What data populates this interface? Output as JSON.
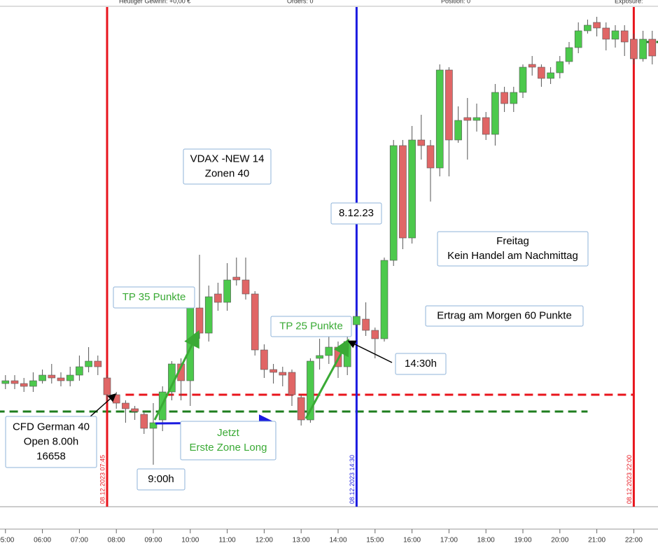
{
  "chart_data": {
    "type": "candlestick",
    "header": [
      "Heutiger Gewinn: +0,00 €",
      "Orders: 0",
      "Position: 0",
      "Exposure:"
    ],
    "x": [
      "05:00",
      "05:15",
      "05:30",
      "05:45",
      "06:00",
      "06:15",
      "06:30",
      "06:45",
      "07:00",
      "07:15",
      "07:30",
      "07:45",
      "08:00",
      "08:15",
      "08:30",
      "08:45",
      "09:00",
      "09:15",
      "09:30",
      "09:45",
      "10:00",
      "10:15",
      "10:30",
      "10:45",
      "11:00",
      "11:15",
      "11:30",
      "11:45",
      "12:00",
      "12:15",
      "12:30",
      "12:45",
      "13:00",
      "13:15",
      "13:30",
      "13:45",
      "14:00",
      "14:15",
      "14:30",
      "14:45",
      "15:00",
      "15:15",
      "15:30",
      "15:45",
      "16:00",
      "16:15",
      "16:30",
      "16:45",
      "17:00",
      "17:15",
      "17:30",
      "17:45",
      "18:00",
      "18:15",
      "18:30",
      "18:45",
      "19:00",
      "19:15",
      "19:30",
      "19:45",
      "20:00",
      "20:15",
      "20:30",
      "20:45",
      "21:00",
      "21:15",
      "21:30",
      "21:45",
      "22:00",
      "22:15",
      "22:30"
    ],
    "open": [
      16668,
      16669,
      16668,
      16667,
      16669,
      16671,
      16670,
      16669,
      16671,
      16674,
      16676,
      16670,
      16664,
      16661,
      16659,
      16657,
      16652,
      16655,
      16665,
      16675,
      16669,
      16695,
      16686,
      16700,
      16697,
      16706,
      16705,
      16700,
      16680,
      16673,
      16672,
      16672,
      16663,
      16655,
      16677,
      16678,
      16681,
      16674,
      16689,
      16691,
      16687,
      16684,
      16712,
      16753,
      16720,
      16755,
      16753,
      16745,
      16780,
      16755,
      16763,
      16762,
      16763,
      16757,
      16772,
      16768,
      16772,
      16782,
      16781,
      16777,
      16779,
      16783,
      16788,
      16794,
      16797,
      16795,
      16791,
      16794,
      16791,
      16784,
      16791
    ],
    "high": [
      16671,
      16671,
      16670,
      16672,
      16673,
      16675,
      16672,
      16674,
      16678,
      16681,
      16678,
      16671,
      16665,
      16662,
      16660,
      16658,
      16661,
      16667,
      16676,
      16677,
      16697,
      16714,
      16703,
      16704,
      16711,
      16713,
      16713,
      16701,
      16682,
      16675,
      16674,
      16673,
      16664,
      16677,
      16684,
      16687,
      16683,
      16685,
      16694,
      16697,
      16688,
      16713,
      16755,
      16755,
      16760,
      16764,
      16755,
      16782,
      16781,
      16767,
      16770,
      16768,
      16765,
      16775,
      16774,
      16774,
      16782,
      16785,
      16782,
      16781,
      16785,
      16790,
      16797,
      16798,
      16799,
      16797,
      16796,
      16796,
      16793,
      16794,
      16794
    ],
    "low": [
      16666,
      16666,
      16665,
      16665,
      16668,
      16668,
      16667,
      16667,
      16669,
      16672,
      16671,
      16662,
      16659,
      16654,
      16655,
      16650,
      16639,
      16651,
      16662,
      16662,
      16660,
      16684,
      16683,
      16694,
      16694,
      16703,
      16698,
      16678,
      16670,
      16668,
      16667,
      16660,
      16653,
      16654,
      16673,
      16675,
      16670,
      16671,
      16688,
      16685,
      16677,
      16683,
      16710,
      16716,
      16718,
      16748,
      16733,
      16742,
      16742,
      16754,
      16748,
      16758,
      16755,
      16753,
      16765,
      16765,
      16770,
      16778,
      16774,
      16775,
      16777,
      16782,
      16786,
      16793,
      16792,
      16787,
      16788,
      16785,
      16782,
      16783,
      16782
    ],
    "close": [
      16669,
      16668,
      16667,
      16669,
      16671,
      16670,
      16669,
      16671,
      16674,
      16676,
      16674,
      16664,
      16661,
      16659,
      16658,
      16652,
      16654,
      16665,
      16675,
      16669,
      16695,
      16686,
      16699,
      16697,
      16705,
      16705,
      16700,
      16680,
      16673,
      16672,
      16671,
      16664,
      16655,
      16676,
      16678,
      16681,
      16674,
      16683,
      16692,
      16687,
      16684,
      16712,
      16753,
      16720,
      16755,
      16753,
      16745,
      16780,
      16755,
      16762,
      16762,
      16763,
      16757,
      16772,
      16768,
      16772,
      16781,
      16781,
      16777,
      16779,
      16783,
      16788,
      16794,
      16796,
      16795,
      16791,
      16794,
      16790,
      16784,
      16791,
      16785
    ],
    "up_color": "#4cc94c",
    "down_color": "#e06666",
    "ylim": [
      16624,
      16803
    ],
    "xticks": [
      "05:00",
      "06:00",
      "07:00",
      "08:00",
      "09:00",
      "10:00",
      "11:00",
      "12:00",
      "13:00",
      "14:00",
      "15:00",
      "16:00",
      "17:00",
      "18:00",
      "19:00",
      "20:00",
      "21:00",
      "22:00"
    ],
    "vlines": [
      {
        "x": "07:45",
        "label": "08.12.2023 07:45",
        "color": "#e8141c"
      },
      {
        "x": "14:30",
        "label": "08.12.2023 14:30",
        "color": "#1a1ae0"
      },
      {
        "x": "22:00",
        "label": "08.12.2023 22:00",
        "color": "#e8141c"
      }
    ],
    "hlines": [
      {
        "value": 16664,
        "from": "08:15",
        "to": "22:00",
        "color": "#e8141c"
      },
      {
        "value": 16658,
        "from": "04:45",
        "to": "20:45",
        "color": "#1e7d1e"
      },
      {
        "value": 16790,
        "from": "22:15",
        "to": "22:45",
        "color": "#1e7d1e"
      }
    ],
    "annotations": [
      {
        "lines": [
          "VDAX -NEW 14",
          "Zonen 40"
        ],
        "color": "#000"
      },
      {
        "lines": [
          "8.12.23"
        ],
        "color": "#000"
      },
      {
        "lines": [
          "Freitag",
          "Kein Handel am Nachmittag"
        ],
        "color": "#000"
      },
      {
        "lines": [
          "Ertrag am Morgen 60 Punkte"
        ],
        "color": "#000"
      },
      {
        "lines": [
          "TP 35 Punkte"
        ],
        "color": "#3aaa35"
      },
      {
        "lines": [
          "TP 25 Punkte"
        ],
        "color": "#3aaa35"
      },
      {
        "lines": [
          "14:30h"
        ],
        "color": "#000"
      },
      {
        "lines": [
          "CFD German 40",
          "Open 8.00h",
          "16658"
        ],
        "color": "#000"
      },
      {
        "lines": [
          "Jetzt",
          "Erste Zone Long"
        ],
        "color": "#3aaa35"
      },
      {
        "lines": [
          "9:00h"
        ],
        "color": "#000"
      }
    ]
  }
}
